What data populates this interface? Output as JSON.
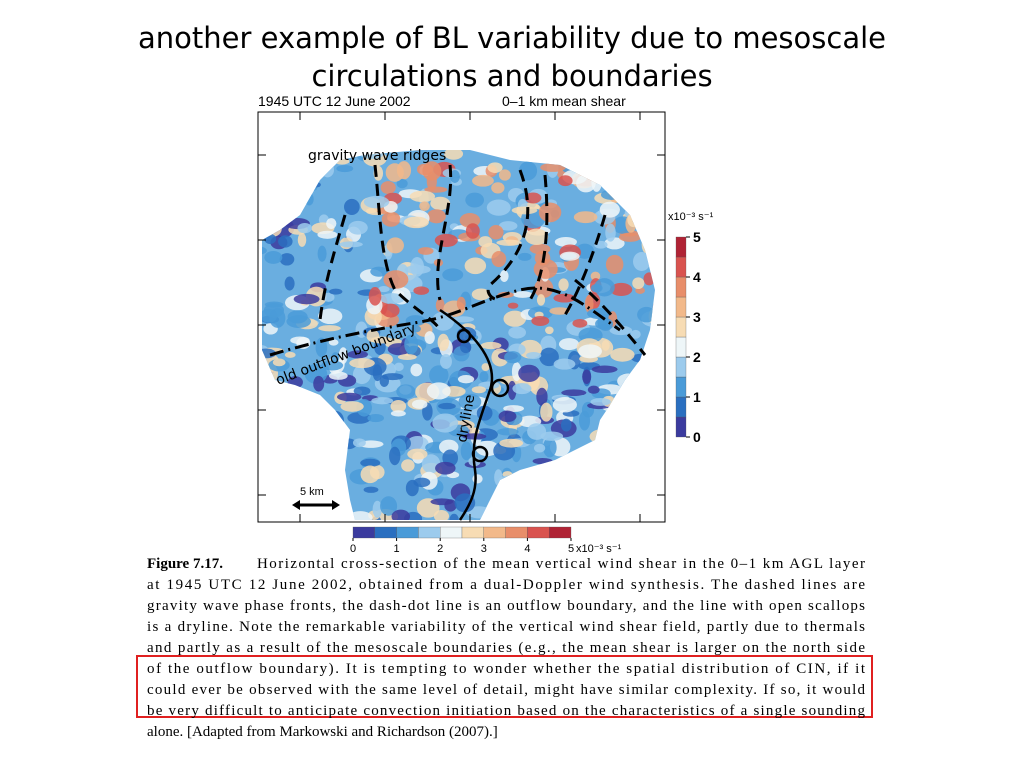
{
  "slide": {
    "title_lines": [
      "another example of BL variability due to mesoscale",
      "circulations and boundaries"
    ]
  },
  "figure": {
    "header_left": "1945 UTC 12 June 2002",
    "header_right": "0–1 km mean shear",
    "annotations": {
      "ridges": "gravity wave ridges",
      "outflow": "old outflow boundary",
      "dryline": "dryline"
    },
    "scale_bar": "5 km",
    "colorbar": {
      "unit": "x10⁻³ s⁻¹",
      "lim": [
        0,
        5
      ],
      "ticks": [
        0,
        1,
        2,
        3,
        4,
        5
      ],
      "colors": [
        "#3b3b9e",
        "#2a6fc0",
        "#4a9bd8",
        "#9ccbed",
        "#eef6f8",
        "#f7dcb4",
        "#f2b98a",
        "#e88e6a",
        "#d9534f",
        "#b02335"
      ]
    }
  },
  "caption": {
    "label": "Figure 7.17.",
    "lines": [
      "Horizontal cross-section of the mean vertical wind shear in the 0–1 km AGL layer",
      "at 1945 UTC 12 June 2002, obtained from a dual-Doppler wind synthesis. The dashed lines are",
      "gravity wave phase fronts, the dash-dot line is an outflow boundary, and the line with open scallops",
      "is a dryline. Note the remarkable variability of the vertical wind shear field, partly due to thermals",
      "and partly as a result of the mesoscale boundaries (e.g., the mean shear is larger on the north side",
      "of the outflow boundary). It is tempting to wonder whether the spatial distribution of CIN, if it",
      "could ever be observed with the same level of detail, might have similar complexity. If so, it would",
      "be very difficult to anticipate convection initiation based on the characteristics of a single sounding",
      "alone. [Adapted from Markowski and Richardson (2007).]"
    ]
  }
}
